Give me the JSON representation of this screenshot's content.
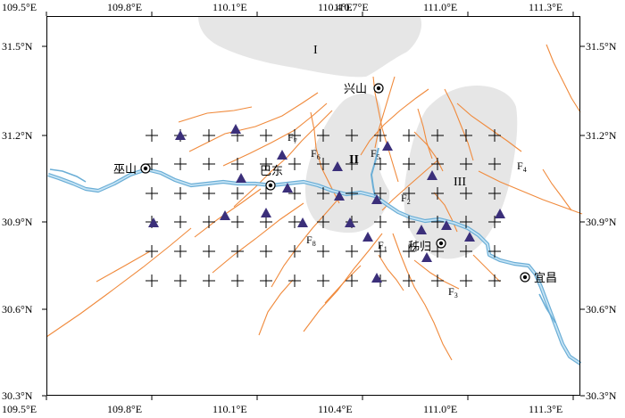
{
  "map": {
    "lon_ticks": [
      "109.5°E",
      "109.8°E",
      "110.1°E",
      "110.4°E",
      "110.7°E",
      "111.0°E",
      "111.3°E"
    ],
    "lat_ticks_left": [
      "31.5°N",
      "31.2°N",
      "30.9°N",
      "30.6°N",
      "30.3°N"
    ],
    "lat_ticks_right": [
      "31.5°N",
      "31.2°N",
      "30.9°N",
      "30.6°N",
      "30.3°N"
    ],
    "cities": [
      {
        "name": "巫山"
      },
      {
        "name": "巴东"
      },
      {
        "name": "兴山"
      },
      {
        "name": "秭归"
      },
      {
        "name": "宜昌"
      }
    ],
    "zones": [
      {
        "label": "I"
      },
      {
        "label": "II"
      },
      {
        "label": "III"
      }
    ],
    "faults": [
      {
        "letter": "F",
        "sub": "1"
      },
      {
        "letter": "F",
        "sub": "2"
      },
      {
        "letter": "F",
        "sub": "3"
      },
      {
        "letter": "F",
        "sub": "4"
      },
      {
        "letter": "F",
        "sub": "5"
      },
      {
        "letter": "F",
        "sub": "6"
      },
      {
        "letter": "F",
        "sub": "7"
      },
      {
        "letter": "F",
        "sub": "8"
      }
    ],
    "colors": {
      "river": "#9ecae1",
      "river_edge": "#6baed6",
      "fault": "#f08a3c",
      "zone_fill": "#e6e6e6",
      "triangle": "#3b2f7a",
      "grid_cross": "#000000"
    }
  }
}
